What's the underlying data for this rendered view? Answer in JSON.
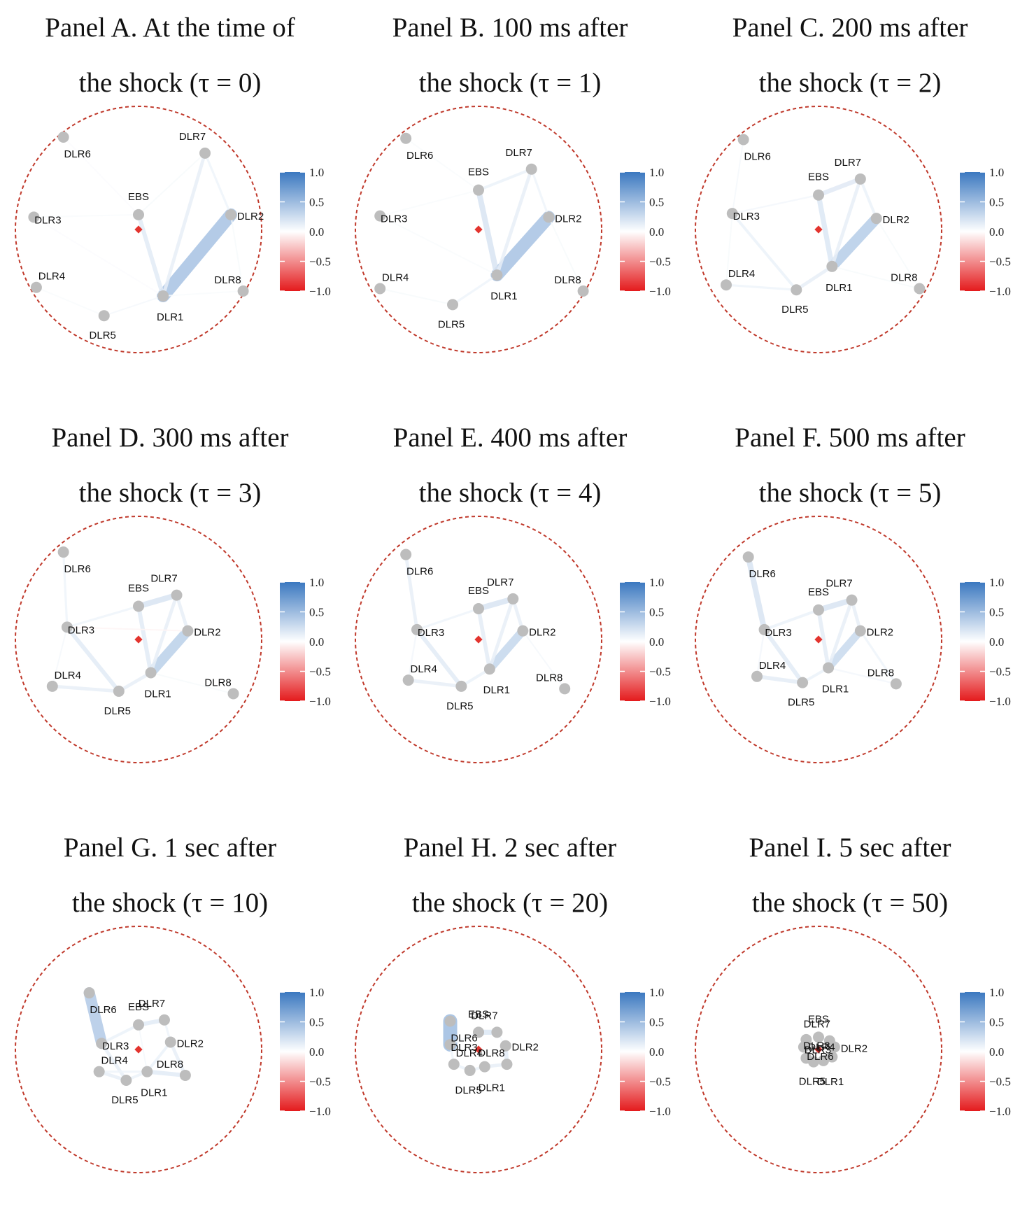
{
  "colors": {
    "boundary": "#c0392b",
    "center": "#e3342f",
    "node": "#bdbdbd",
    "positive": "#3b78c0",
    "neutral": "#ffffff",
    "negative": "#e41a1c"
  },
  "colorbar": {
    "ticks": [
      "1.0",
      "0.5",
      "0.0",
      "−0.5",
      "−1.0"
    ],
    "range": [
      -1,
      1
    ]
  },
  "nodes": [
    "EBS",
    "DLR1",
    "DLR2",
    "DLR3",
    "DLR4",
    "DLR5",
    "DLR6",
    "DLR7",
    "DLR8"
  ],
  "panels": [
    {
      "title_line1": "Panel A. At the time of",
      "title_line2": "the shock (τ = 0)",
      "positions": {
        "EBS": [
          0,
          0.12
        ],
        "DLR1": [
          0.2,
          -0.54
        ],
        "DLR2": [
          0.75,
          0.12
        ],
        "DLR3": [
          -0.85,
          0.1
        ],
        "DLR4": [
          -0.83,
          -0.47
        ],
        "DLR5": [
          -0.28,
          -0.7
        ],
        "DLR6": [
          -0.61,
          0.75
        ],
        "DLR7": [
          0.54,
          0.62
        ],
        "DLR8": [
          0.85,
          -0.5
        ]
      },
      "edges": [
        [
          "DLR1",
          "DLR2",
          0.45
        ],
        [
          "EBS",
          "DLR1",
          0.15
        ],
        [
          "DLR1",
          "DLR7",
          0.12
        ],
        [
          "DLR7",
          "DLR2",
          0.08
        ],
        [
          "DLR5",
          "DLR1",
          0.05
        ],
        [
          "EBS",
          "DLR7",
          0.04
        ],
        [
          "DLR3",
          "EBS",
          0.03
        ],
        [
          "DLR4",
          "DLR5",
          0.03
        ],
        [
          "DLR6",
          "EBS",
          0.02
        ],
        [
          "DLR8",
          "DLR2",
          0.04
        ],
        [
          "DLR8",
          "DLR1",
          0.03
        ],
        [
          "DLR3",
          "DLR1",
          0.02
        ]
      ]
    },
    {
      "title_line1": "Panel B. 100 ms after",
      "title_line2": "the shock (τ = 1)",
      "positions": {
        "EBS": [
          0,
          0.32
        ],
        "DLR1": [
          0.15,
          -0.37
        ],
        "DLR2": [
          0.57,
          0.1
        ],
        "DLR3": [
          -0.8,
          0.11
        ],
        "DLR4": [
          -0.8,
          -0.48
        ],
        "DLR5": [
          -0.21,
          -0.61
        ],
        "DLR6": [
          -0.59,
          0.74
        ],
        "DLR7": [
          0.43,
          0.49
        ],
        "DLR8": [
          0.85,
          -0.5
        ]
      },
      "edges": [
        [
          "DLR1",
          "DLR2",
          0.45
        ],
        [
          "EBS",
          "DLR1",
          0.2
        ],
        [
          "EBS",
          "DLR7",
          0.1
        ],
        [
          "DLR1",
          "DLR7",
          0.12
        ],
        [
          "DLR7",
          "DLR2",
          0.08
        ],
        [
          "DLR5",
          "DLR1",
          0.08
        ],
        [
          "DLR3",
          "DLR1",
          0.03
        ],
        [
          "DLR4",
          "DLR5",
          0.04
        ],
        [
          "DLR6",
          "EBS",
          0.03
        ],
        [
          "DLR8",
          "DLR2",
          0.04
        ],
        [
          "DLR3",
          "EBS",
          0.03
        ]
      ]
    },
    {
      "title_line1": "Panel C. 200 ms after",
      "title_line2": "the shock (τ = 2)",
      "positions": {
        "EBS": [
          0,
          0.28
        ],
        "DLR1": [
          0.11,
          -0.3
        ],
        "DLR2": [
          0.47,
          0.09
        ],
        "DLR3": [
          -0.7,
          0.13
        ],
        "DLR4": [
          -0.75,
          -0.45
        ],
        "DLR5": [
          -0.18,
          -0.49
        ],
        "DLR6": [
          -0.61,
          0.73
        ],
        "DLR7": [
          0.34,
          0.41
        ],
        "DLR8": [
          0.82,
          -0.48
        ]
      },
      "edges": [
        [
          "DLR1",
          "DLR2",
          0.38
        ],
        [
          "EBS",
          "DLR1",
          0.18
        ],
        [
          "EBS",
          "DLR7",
          0.16
        ],
        [
          "DLR1",
          "DLR7",
          0.12
        ],
        [
          "DLR7",
          "DLR2",
          0.1
        ],
        [
          "DLR5",
          "DLR1",
          0.12
        ],
        [
          "DLR3",
          "DLR5",
          0.1
        ],
        [
          "DLR4",
          "DLR5",
          0.08
        ],
        [
          "DLR6",
          "DLR3",
          0.05
        ],
        [
          "DLR3",
          "EBS",
          0.06
        ],
        [
          "DLR8",
          "DLR2",
          0.04
        ],
        [
          "DLR4",
          "DLR3",
          0.04
        ],
        [
          "DLR8",
          "DLR1",
          0.04
        ]
      ]
    },
    {
      "title_line1": "Panel D. 300 ms after",
      "title_line2": "the shock (τ = 3)",
      "positions": {
        "EBS": [
          0,
          0.27
        ],
        "DLR1": [
          0.1,
          -0.27
        ],
        "DLR2": [
          0.4,
          0.07
        ],
        "DLR3": [
          -0.58,
          0.1
        ],
        "DLR4": [
          -0.7,
          -0.38
        ],
        "DLR5": [
          -0.16,
          -0.42
        ],
        "DLR6": [
          -0.61,
          0.71
        ],
        "DLR7": [
          0.31,
          0.36
        ],
        "DLR8": [
          0.77,
          -0.44
        ]
      },
      "edges": [
        [
          "DLR1",
          "DLR2",
          0.35
        ],
        [
          "EBS",
          "DLR7",
          0.2
        ],
        [
          "EBS",
          "DLR1",
          0.15
        ],
        [
          "DLR1",
          "DLR7",
          0.12
        ],
        [
          "DLR7",
          "DLR2",
          0.12
        ],
        [
          "DLR3",
          "DLR5",
          0.15
        ],
        [
          "DLR4",
          "DLR5",
          0.12
        ],
        [
          "DLR5",
          "DLR1",
          0.12
        ],
        [
          "DLR6",
          "DLR3",
          0.08
        ],
        [
          "DLR3",
          "EBS",
          0.08
        ],
        [
          "DLR3",
          "DLR2",
          -0.05
        ],
        [
          "DLR8",
          "DLR1",
          0.04
        ],
        [
          "DLR4",
          "DLR3",
          0.05
        ]
      ]
    },
    {
      "title_line1": "Panel E. 400 ms after",
      "title_line2": "the shock (τ = 4)",
      "positions": {
        "EBS": [
          0,
          0.25
        ],
        "DLR1": [
          0.09,
          -0.24
        ],
        "DLR2": [
          0.36,
          0.07
        ],
        "DLR3": [
          -0.5,
          0.08
        ],
        "DLR4": [
          -0.57,
          -0.33
        ],
        "DLR5": [
          -0.14,
          -0.38
        ],
        "DLR6": [
          -0.59,
          0.69
        ],
        "DLR7": [
          0.28,
          0.33
        ],
        "DLR8": [
          0.7,
          -0.4
        ]
      },
      "edges": [
        [
          "DLR1",
          "DLR2",
          0.3
        ],
        [
          "EBS",
          "DLR7",
          0.2
        ],
        [
          "EBS",
          "DLR1",
          0.14
        ],
        [
          "DLR1",
          "DLR7",
          0.12
        ],
        [
          "DLR7",
          "DLR2",
          0.12
        ],
        [
          "DLR3",
          "DLR5",
          0.15
        ],
        [
          "DLR4",
          "DLR5",
          0.12
        ],
        [
          "DLR5",
          "DLR1",
          0.1
        ],
        [
          "DLR6",
          "DLR3",
          0.12
        ],
        [
          "DLR3",
          "EBS",
          0.08
        ],
        [
          "DLR8",
          "DLR2",
          0.05
        ],
        [
          "DLR4",
          "DLR3",
          0.06
        ]
      ]
    },
    {
      "title_line1": "Panel F. 500 ms after",
      "title_line2": "the shock (τ = 5)",
      "positions": {
        "EBS": [
          0,
          0.24
        ],
        "DLR1": [
          0.08,
          -0.23
        ],
        "DLR2": [
          0.34,
          0.07
        ],
        "DLR3": [
          -0.44,
          0.08
        ],
        "DLR4": [
          -0.5,
          -0.3
        ],
        "DLR5": [
          -0.13,
          -0.35
        ],
        "DLR6": [
          -0.57,
          0.67
        ],
        "DLR7": [
          0.27,
          0.32
        ],
        "DLR8": [
          0.63,
          -0.36
        ]
      },
      "edges": [
        [
          "DLR1",
          "DLR2",
          0.28
        ],
        [
          "EBS",
          "DLR7",
          0.2
        ],
        [
          "EBS",
          "DLR1",
          0.14
        ],
        [
          "DLR1",
          "DLR7",
          0.12
        ],
        [
          "DLR7",
          "DLR2",
          0.12
        ],
        [
          "DLR3",
          "DLR5",
          0.15
        ],
        [
          "DLR4",
          "DLR5",
          0.14
        ],
        [
          "DLR5",
          "DLR1",
          0.1
        ],
        [
          "DLR6",
          "DLR3",
          0.2
        ],
        [
          "DLR3",
          "EBS",
          0.1
        ],
        [
          "DLR8",
          "DLR2",
          0.08
        ],
        [
          "DLR8",
          "DLR1",
          0.06
        ],
        [
          "DLR4",
          "DLR3",
          0.06
        ]
      ]
    },
    {
      "title_line1": "Panel G. 1 sec after",
      "title_line2": "the shock (τ = 10)",
      "positions": {
        "EBS": [
          0,
          0.2
        ],
        "DLR1": [
          0.07,
          -0.18
        ],
        "DLR2": [
          0.26,
          0.06
        ],
        "DLR3": [
          -0.3,
          0.05
        ],
        "DLR4": [
          -0.32,
          -0.18
        ],
        "DLR5": [
          -0.1,
          -0.25
        ],
        "DLR6": [
          -0.4,
          0.46
        ],
        "DLR7": [
          0.21,
          0.24
        ],
        "DLR8": [
          0.38,
          -0.21
        ]
      },
      "edges": [
        [
          "DLR6",
          "DLR3",
          0.4
        ],
        [
          "EBS",
          "DLR7",
          0.15
        ],
        [
          "DLR1",
          "DLR8",
          0.15
        ],
        [
          "DLR2",
          "DLR8",
          0.12
        ],
        [
          "DLR4",
          "DLR5",
          0.12
        ],
        [
          "DLR5",
          "DLR1",
          0.1
        ],
        [
          "DLR3",
          "DLR5",
          0.12
        ],
        [
          "DLR3",
          "EBS",
          0.1
        ],
        [
          "DLR1",
          "DLR2",
          0.1
        ],
        [
          "DLR4",
          "DLR1",
          0.08
        ],
        [
          "DLR7",
          "DLR2",
          0.08
        ],
        [
          "EBS",
          "DLR1",
          0.05
        ]
      ]
    },
    {
      "title_line1": "Panel H. 2 sec after",
      "title_line2": "the shock (τ = 20)",
      "positions": {
        "EBS": [
          0,
          0.14
        ],
        "DLR1": [
          0.05,
          -0.14
        ],
        "DLR2": [
          0.22,
          0.03
        ],
        "DLR3": [
          -0.23,
          0.04
        ],
        "DLR4": [
          -0.2,
          -0.12
        ],
        "DLR5": [
          -0.07,
          -0.17
        ],
        "DLR6": [
          -0.23,
          0.23
        ],
        "DLR7": [
          0.15,
          0.14
        ],
        "DLR8": [
          0.23,
          -0.12
        ]
      },
      "edges": [
        [
          "DLR6",
          "DLR3",
          0.5
        ],
        [
          "EBS",
          "DLR7",
          0.18
        ],
        [
          "DLR2",
          "DLR8",
          0.15
        ],
        [
          "DLR1",
          "DLR8",
          0.12
        ],
        [
          "DLR5",
          "DLR1",
          0.1
        ],
        [
          "DLR4",
          "DLR5",
          0.1
        ],
        [
          "DLR3",
          "DLR4",
          0.08
        ],
        [
          "DLR3",
          "EBS",
          0.06
        ],
        [
          "DLR7",
          "DLR2",
          0.05
        ]
      ]
    },
    {
      "title_line1": "Panel I. 5 sec after",
      "title_line2": "the shock (τ = 50)",
      "positions": {
        "EBS": [
          0,
          0.1
        ],
        "DLR1": [
          0.04,
          -0.09
        ],
        "DLR2": [
          0.13,
          0.02
        ],
        "DLR3": [
          -0.12,
          0.02
        ],
        "DLR4": [
          -0.1,
          -0.07
        ],
        "DLR5": [
          -0.04,
          -0.1
        ],
        "DLR6": [
          -0.1,
          0.08
        ],
        "DLR7": [
          0.09,
          0.07
        ],
        "DLR8": [
          0.11,
          -0.06
        ]
      },
      "edges": [
        [
          "DLR6",
          "DLR3",
          0.3
        ],
        [
          "EBS",
          "DLR7",
          0.1
        ],
        [
          "DLR2",
          "DLR8",
          0.1
        ],
        [
          "DLR5",
          "DLR1",
          0.08
        ],
        [
          "DLR4",
          "DLR5",
          0.08
        ]
      ]
    }
  ]
}
